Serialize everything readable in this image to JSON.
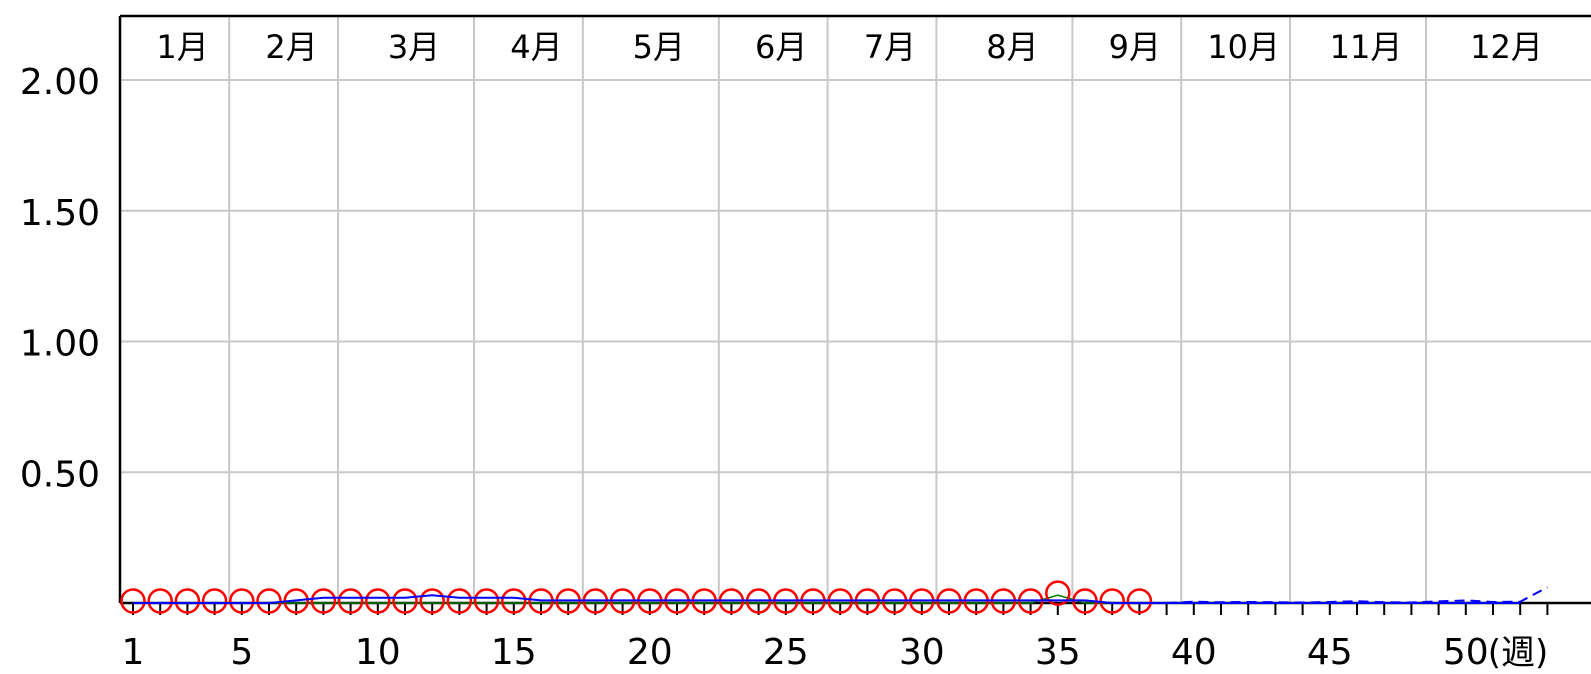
{
  "chart_data": {
    "type": "line",
    "x_unit_label": "(週)",
    "x_ticks": [
      1,
      5,
      10,
      15,
      20,
      25,
      30,
      35,
      40,
      45,
      50
    ],
    "y_ticks": [
      "2.00",
      "1.50",
      "1.00",
      "0.50"
    ],
    "ylim": [
      0,
      2.2
    ],
    "xlim": [
      1,
      53
    ],
    "months": [
      {
        "label": "1月",
        "start_week": 1,
        "end_week": 5
      },
      {
        "label": "2月",
        "start_week": 5,
        "end_week": 9
      },
      {
        "label": "3月",
        "start_week": 9,
        "end_week": 14
      },
      {
        "label": "4月",
        "start_week": 14,
        "end_week": 18
      },
      {
        "label": "5月",
        "start_week": 18,
        "end_week": 23
      },
      {
        "label": "6月",
        "start_week": 23,
        "end_week": 27
      },
      {
        "label": "7月",
        "start_week": 27,
        "end_week": 31
      },
      {
        "label": "8月",
        "start_week": 31,
        "end_week": 36
      },
      {
        "label": "9月",
        "start_week": 36,
        "end_week": 40
      },
      {
        "label": "10月",
        "start_week": 40,
        "end_week": 44
      },
      {
        "label": "11月",
        "start_week": 44,
        "end_week": 49
      },
      {
        "label": "12月",
        "start_week": 49,
        "end_week": 53
      }
    ],
    "series": [
      {
        "style": "red-circle-markers",
        "color": "#ff0000",
        "x": [
          1,
          2,
          3,
          4,
          5,
          6,
          7,
          8,
          9,
          10,
          11,
          12,
          13,
          14,
          15,
          16,
          17,
          18,
          19,
          20,
          21,
          22,
          23,
          24,
          25,
          26,
          27,
          28,
          29,
          30,
          31,
          32,
          33,
          34,
          35,
          36,
          37,
          38
        ],
        "values": [
          0,
          0,
          0,
          0,
          0,
          0,
          0,
          0,
          0,
          0,
          0,
          0,
          0,
          0,
          0,
          0,
          0,
          0,
          0,
          0,
          0,
          0,
          0,
          0,
          0,
          0,
          0,
          0,
          0,
          0,
          0,
          0,
          0,
          0,
          0.03,
          0,
          0,
          0
        ]
      },
      {
        "style": "blue-solid-line",
        "color": "#0000ff",
        "x": [
          1,
          2,
          3,
          4,
          5,
          6,
          7,
          8,
          9,
          10,
          11,
          12,
          13,
          14,
          15,
          16,
          17,
          18,
          19,
          20,
          21,
          22,
          23,
          24,
          25,
          26,
          27,
          28,
          29,
          30,
          31,
          32,
          33,
          34,
          35,
          36,
          37,
          38,
          39,
          40,
          41,
          42,
          43,
          44,
          45,
          46,
          47,
          48,
          49,
          50,
          51,
          52
        ],
        "values": [
          0,
          0,
          0,
          0,
          0,
          0,
          0.01,
          0.02,
          0.02,
          0.02,
          0.02,
          0.03,
          0.02,
          0.02,
          0.02,
          0.01,
          0.01,
          0.01,
          0.01,
          0.01,
          0.01,
          0.01,
          0.01,
          0.01,
          0.01,
          0.01,
          0.01,
          0.01,
          0.01,
          0.01,
          0.01,
          0.01,
          0.01,
          0.01,
          0.01,
          0.01,
          0,
          0,
          0,
          0,
          0,
          0,
          0,
          0,
          0,
          0,
          0,
          0,
          0,
          0,
          0,
          0
        ]
      },
      {
        "style": "blue-dashed-line",
        "color": "#0000ff",
        "x": [
          39,
          40,
          41,
          42,
          43,
          44,
          45,
          46,
          47,
          48,
          49,
          50,
          51,
          52,
          53
        ],
        "values": [
          0,
          0.005,
          0.003,
          0.004,
          0.003,
          0.002,
          0.004,
          0.007,
          0.003,
          0.002,
          0.006,
          0.01,
          0.004,
          0.005,
          0.06
        ]
      }
    ]
  }
}
